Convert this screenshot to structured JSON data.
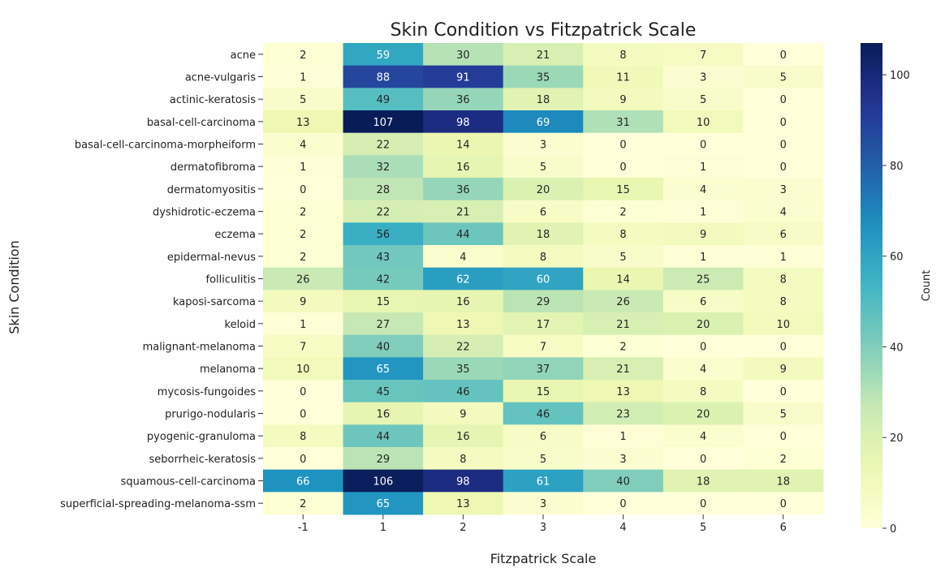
{
  "chart_data": {
    "type": "heatmap",
    "title": "Skin Condition vs Fitzpatrick Scale",
    "xlabel": "Fitzpatrick Scale",
    "ylabel": "Skin Condition",
    "x_categories": [
      "-1",
      "1",
      "2",
      "3",
      "4",
      "5",
      "6"
    ],
    "y_categories": [
      "acne",
      "acne-vulgaris",
      "actinic-keratosis",
      "basal-cell-carcinoma",
      "basal-cell-carcinoma-morpheiform",
      "dermatofibroma",
      "dermatomyositis",
      "dyshidrotic-eczema",
      "eczema",
      "epidermal-nevus",
      "folliculitis",
      "kaposi-sarcoma",
      "keloid",
      "malignant-melanoma",
      "melanoma",
      "mycosis-fungoides",
      "prurigo-nodularis",
      "pyogenic-granuloma",
      "seborrheic-keratosis",
      "squamous-cell-carcinoma",
      "superficial-spreading-melanoma-ssm"
    ],
    "values": [
      [
        2,
        59,
        30,
        21,
        8,
        7,
        0
      ],
      [
        1,
        88,
        91,
        35,
        11,
        3,
        5
      ],
      [
        5,
        49,
        36,
        18,
        9,
        5,
        0
      ],
      [
        13,
        107,
        98,
        69,
        31,
        10,
        0
      ],
      [
        4,
        22,
        14,
        3,
        0,
        0,
        0
      ],
      [
        1,
        32,
        16,
        5,
        0,
        1,
        0
      ],
      [
        0,
        28,
        36,
        20,
        15,
        4,
        3
      ],
      [
        2,
        22,
        21,
        6,
        2,
        1,
        4
      ],
      [
        2,
        56,
        44,
        18,
        8,
        9,
        6
      ],
      [
        2,
        43,
        4,
        8,
        5,
        1,
        1
      ],
      [
        26,
        42,
        62,
        60,
        14,
        25,
        8
      ],
      [
        9,
        15,
        16,
        29,
        26,
        6,
        8
      ],
      [
        1,
        27,
        13,
        17,
        21,
        20,
        10
      ],
      [
        7,
        40,
        22,
        7,
        2,
        0,
        0
      ],
      [
        10,
        65,
        35,
        37,
        21,
        4,
        9
      ],
      [
        0,
        45,
        46,
        15,
        13,
        8,
        0
      ],
      [
        0,
        16,
        9,
        46,
        23,
        20,
        5
      ],
      [
        8,
        44,
        16,
        6,
        1,
        4,
        0
      ],
      [
        0,
        29,
        8,
        5,
        3,
        0,
        2
      ],
      [
        66,
        106,
        98,
        61,
        40,
        18,
        18
      ],
      [
        2,
        65,
        13,
        3,
        0,
        0,
        0
      ]
    ],
    "colormap": "YlGnBu",
    "vmin": 0,
    "vmax": 107,
    "colorbar": {
      "label": "Count",
      "ticks": [
        0,
        20,
        40,
        60,
        80,
        100
      ]
    }
  }
}
